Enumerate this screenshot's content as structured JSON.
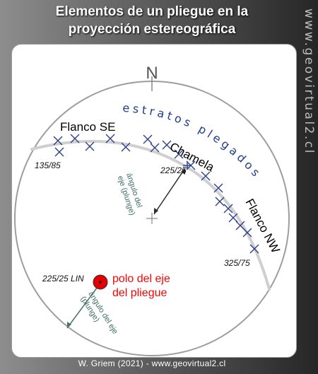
{
  "header": {
    "title_line1": "Elementos de un pliegue en la",
    "title_line2": "proyección estereográfica"
  },
  "watermark": "www.geovirtual2.cl",
  "credit": "W. Griem (2021) - www.geovirtual2.cl",
  "net": {
    "north_label": "N"
  },
  "labels": {
    "strata": "estratos plegados",
    "flank_se": "Flanco SE",
    "flank_nw": "Flanco NW",
    "chamela": "Chamela",
    "se_orientation": "135/85",
    "nw_orientation": "325/75",
    "axis_orientation": "225/25",
    "lin_label": "225/25 LIN",
    "plunge_upper_line1": "ángulo del",
    "plunge_upper_line2": "eje (plunge)",
    "plunge_lower_line1": "ángulo del eje",
    "plunge_lower_line2": "(plunge)",
    "pole_line1": "polo del eje",
    "pole_line2": "del pliegue"
  },
  "colors": {
    "strata_text": "#1f3d8f",
    "marker": "#2b3f8c",
    "pole_fill": "#e00000",
    "pole_text": "#ff0000",
    "annotation": "#3d6e66",
    "girdle": "#cfcfcf"
  }
}
